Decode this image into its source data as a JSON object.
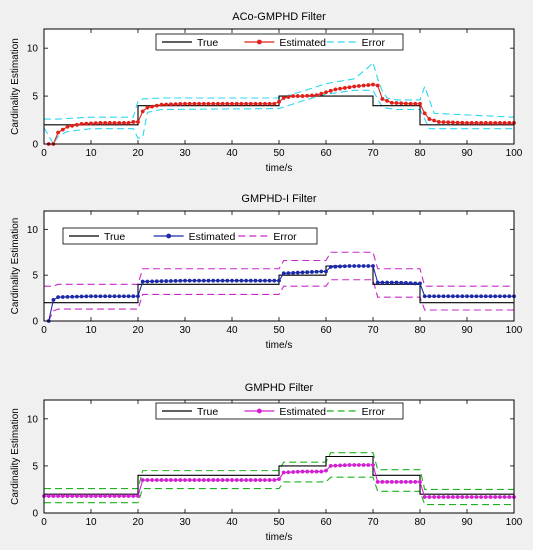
{
  "chart_data": [
    {
      "type": "line",
      "title": "ACo-GMPHD Filter",
      "xlabel": "time/s",
      "ylabel": "Cardinality Estimation",
      "xlim": [
        0,
        100
      ],
      "ylim": [
        0,
        12
      ],
      "xticks": [
        "0",
        "10",
        "20",
        "30",
        "40",
        "50",
        "60",
        "70",
        "80",
        "90",
        "100"
      ],
      "yticks": [
        "0",
        "5",
        "10"
      ],
      "legend": {
        "position": "top",
        "entries": [
          "True",
          "Estimated",
          "Error"
        ]
      },
      "colors": {
        "true": "#000000",
        "estimated": "#e0201b",
        "error": "#2dd7f0"
      },
      "series": [
        {
          "name": "True",
          "x": [
            0,
            2,
            2,
            20,
            20,
            50,
            50,
            70,
            70,
            80,
            80,
            100
          ],
          "y": [
            2,
            2,
            2,
            2,
            4,
            4,
            5,
            5,
            4,
            4,
            2,
            2
          ]
        },
        {
          "name": "Estimated",
          "x": [
            1,
            2,
            3,
            5,
            8,
            12,
            18,
            19,
            20,
            21,
            22,
            25,
            30,
            40,
            49,
            50,
            51,
            53,
            55,
            58,
            62,
            66,
            70,
            71,
            72,
            74,
            78,
            80,
            81,
            82,
            84,
            90,
            100
          ],
          "y": [
            0,
            0,
            1.2,
            1.8,
            2.1,
            2.2,
            2.2,
            2.3,
            2.3,
            3.4,
            3.8,
            4.1,
            4.2,
            4.2,
            4.2,
            4.4,
            4.8,
            5.0,
            5.0,
            5.1,
            5.7,
            6.0,
            6.2,
            6.1,
            4.7,
            4.3,
            4.2,
            4.2,
            3.2,
            2.6,
            2.3,
            2.2,
            2.2
          ]
        },
        {
          "name": "Error (upper)",
          "x": [
            0,
            1,
            3,
            10,
            19,
            20,
            21,
            25,
            50,
            55,
            60,
            66,
            69,
            70,
            71,
            72,
            73,
            75,
            80,
            81,
            83,
            100
          ],
          "y": [
            2.6,
            2.6,
            2.6,
            2.8,
            2.8,
            4.5,
            4.7,
            4.8,
            4.8,
            5.5,
            6.3,
            6.8,
            8.0,
            8.5,
            6.8,
            5.5,
            4.8,
            4.6,
            4.6,
            6.0,
            3.2,
            2.8
          ]
        },
        {
          "name": "Error (lower)",
          "x": [
            0,
            2,
            3,
            5,
            10,
            19,
            20,
            21,
            22,
            25,
            50,
            55,
            60,
            66,
            70,
            72,
            75,
            80,
            82,
            100
          ],
          "y": [
            1.7,
            0,
            0.8,
            1.3,
            1.6,
            1.6,
            0.6,
            0.7,
            3.3,
            3.6,
            3.7,
            4.5,
            5.2,
            5.6,
            5.6,
            3.8,
            3.6,
            3.6,
            1.6,
            1.6
          ]
        }
      ]
    },
    {
      "type": "line",
      "title": "GMPHD-I Filter",
      "xlabel": "time/s",
      "ylabel": "Cardinality Estimation",
      "xlim": [
        0,
        100
      ],
      "ylim": [
        0,
        12
      ],
      "xticks": [
        "0",
        "10",
        "20",
        "30",
        "40",
        "50",
        "60",
        "70",
        "80",
        "90",
        "100"
      ],
      "yticks": [
        "0",
        "5",
        "10"
      ],
      "legend": {
        "position": "top-left",
        "entries": [
          "True",
          "Estimated",
          "Error"
        ]
      },
      "colors": {
        "true": "#000000",
        "estimated": "#1d2aa8",
        "error": "#c928c9"
      },
      "series": [
        {
          "name": "True",
          "x": [
            0,
            2,
            2,
            20,
            20,
            50,
            50,
            60,
            60,
            70,
            70,
            80,
            80,
            100
          ],
          "y": [
            2,
            2,
            2,
            2,
            4,
            4,
            5,
            5,
            6,
            6,
            4,
            4,
            2,
            2
          ]
        },
        {
          "name": "Estimated",
          "x": [
            1,
            2,
            3,
            10,
            19,
            20,
            21,
            30,
            40,
            49,
            50,
            51,
            55,
            59,
            60,
            61,
            65,
            69,
            70,
            71,
            75,
            79,
            80,
            81,
            90,
            100
          ],
          "y": [
            0,
            2.3,
            2.6,
            2.7,
            2.7,
            2.7,
            4.3,
            4.4,
            4.4,
            4.4,
            4.4,
            5.2,
            5.3,
            5.4,
            5.4,
            5.9,
            6.0,
            6.0,
            6.0,
            4.2,
            4.2,
            4.1,
            4.1,
            2.7,
            2.7,
            2.7
          ]
        },
        {
          "name": "Error (upper)",
          "x": [
            0,
            2,
            3,
            20,
            21,
            50,
            51,
            60,
            61,
            70,
            71,
            80,
            81,
            100
          ],
          "y": [
            3.8,
            3.8,
            4.0,
            4.0,
            5.7,
            5.7,
            6.6,
            6.6,
            7.5,
            7.5,
            5.7,
            5.7,
            3.8,
            3.8
          ]
        },
        {
          "name": "Error (lower)",
          "x": [
            1,
            2,
            3,
            20,
            21,
            50,
            51,
            60,
            61,
            70,
            71,
            80,
            81,
            100
          ],
          "y": [
            0,
            1.1,
            1.3,
            1.3,
            2.9,
            2.9,
            3.8,
            3.8,
            4.5,
            4.5,
            2.6,
            2.6,
            1.2,
            1.2
          ]
        }
      ]
    },
    {
      "type": "line",
      "title": "GMPHD Filter",
      "xlabel": "time/s",
      "ylabel": "Cardinality Estimation",
      "xlim": [
        0,
        100
      ],
      "ylim": [
        0,
        12
      ],
      "xticks": [
        "0",
        "10",
        "20",
        "30",
        "40",
        "50",
        "60",
        "70",
        "80",
        "90",
        "100"
      ],
      "yticks": [
        "0",
        "5",
        "10"
      ],
      "legend": {
        "position": "top",
        "entries": [
          "True",
          "Estimated",
          "Error"
        ]
      },
      "colors": {
        "true": "#000000",
        "estimated": "#d21fd2",
        "error": "#1fb21f"
      },
      "series": [
        {
          "name": "True",
          "x": [
            0,
            20,
            20,
            50,
            50,
            60,
            60,
            70,
            70,
            80,
            80,
            100
          ],
          "y": [
            2,
            2,
            4,
            4,
            5,
            5,
            6,
            6,
            4,
            4,
            2,
            2
          ]
        },
        {
          "name": "Estimated",
          "x": [
            0,
            10,
            19,
            20,
            21,
            30,
            40,
            49,
            50,
            51,
            55,
            59,
            60,
            61,
            65,
            69,
            70,
            71,
            75,
            79,
            80,
            81,
            90,
            100
          ],
          "y": [
            1.8,
            1.8,
            1.8,
            1.8,
            3.5,
            3.5,
            3.5,
            3.5,
            3.6,
            4.3,
            4.4,
            4.4,
            4.5,
            5.0,
            5.1,
            5.1,
            5.1,
            3.3,
            3.3,
            3.3,
            3.3,
            1.7,
            1.7,
            1.7
          ]
        },
        {
          "name": "Error (upper)",
          "x": [
            0,
            20,
            21,
            50,
            51,
            60,
            61,
            70,
            71,
            80,
            81,
            100
          ],
          "y": [
            2.6,
            2.6,
            4.5,
            4.5,
            5.4,
            5.4,
            6.4,
            6.4,
            4.6,
            4.6,
            2.5,
            2.5
          ]
        },
        {
          "name": "Error (lower)",
          "x": [
            0,
            20,
            21,
            50,
            51,
            60,
            61,
            70,
            71,
            80,
            81,
            100
          ],
          "y": [
            1.1,
            1.1,
            2.6,
            2.6,
            3.3,
            3.3,
            3.8,
            3.8,
            2.3,
            2.3,
            0.9,
            0.9
          ]
        }
      ]
    }
  ]
}
